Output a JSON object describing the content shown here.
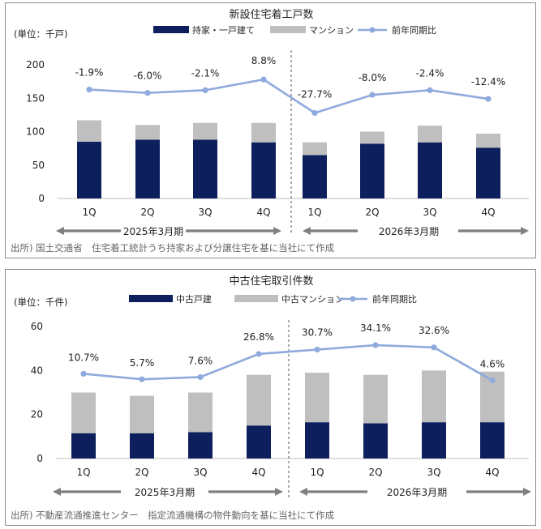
{
  "chart_data": [
    {
      "type": "bar",
      "stacked": true,
      "title": "新設住宅着工戸数",
      "unit_label": "(単位：千戸)",
      "categories": [
        "1Q",
        "2Q",
        "3Q",
        "4Q",
        "1Q",
        "2Q",
        "3Q",
        "4Q"
      ],
      "series": [
        {
          "name": "持家・一戸建て",
          "type": "bar",
          "color": "#0d1f5c",
          "values": [
            85,
            88,
            88,
            84,
            65,
            82,
            84,
            76
          ]
        },
        {
          "name": "マンション",
          "type": "bar",
          "color": "#bfbfbf",
          "values": [
            32,
            22,
            25,
            29,
            19,
            18,
            25,
            21
          ]
        },
        {
          "name": "前年同期比",
          "type": "line",
          "color": "#8faadc",
          "plot_values": [
            163,
            158,
            162,
            178,
            128,
            155,
            162,
            149
          ],
          "labels": [
            "-1.9%",
            "-6.0%",
            "-2.1%",
            "8.8%",
            "-27.7%",
            "-8.0%",
            "-2.4%",
            "-12.4%"
          ]
        }
      ],
      "yticks": [
        "200",
        "150",
        "100",
        "50",
        "0"
      ],
      "ylim": [
        0,
        200
      ],
      "periods": [
        "2025年3月期",
        "2026年3月期"
      ],
      "source": "出所) 国土交通省　住宅着工統計うち持家および分譲住宅を基に当社にて作成",
      "grid": false,
      "legend_position": "top"
    },
    {
      "type": "bar",
      "stacked": true,
      "title": "中古住宅取引件数",
      "unit_label": "(単位：千件)",
      "categories": [
        "1Q",
        "2Q",
        "3Q",
        "4Q",
        "1Q",
        "2Q",
        "3Q",
        "4Q"
      ],
      "series": [
        {
          "name": "中古戸建",
          "type": "bar",
          "color": "#0d1f5c",
          "values": [
            11.5,
            11.5,
            12,
            15,
            16.5,
            16,
            16.5,
            16.5
          ]
        },
        {
          "name": "中古マンション",
          "type": "bar",
          "color": "#bfbfbf",
          "values": [
            18.5,
            17,
            18,
            23,
            22.5,
            22,
            23.5,
            23
          ]
        },
        {
          "name": "前年同期比",
          "type": "line",
          "color": "#8faadc",
          "plot_values": [
            38.5,
            36,
            37,
            47.5,
            49.5,
            51.5,
            50.5,
            35.5
          ],
          "labels": [
            "10.7%",
            "5.7%",
            "7.6%",
            "26.8%",
            "30.7%",
            "34.1%",
            "32.6%",
            "4.6%"
          ]
        }
      ],
      "yticks": [
        "60",
        "40",
        "20",
        "0"
      ],
      "ylim": [
        0,
        60
      ],
      "periods": [
        "2025年3月期",
        "2026年3月期"
      ],
      "source": "出所) 不動産流通推進センター　指定流通機構の物件動向を基に当社にて作成",
      "grid": false,
      "legend_position": "top"
    }
  ]
}
